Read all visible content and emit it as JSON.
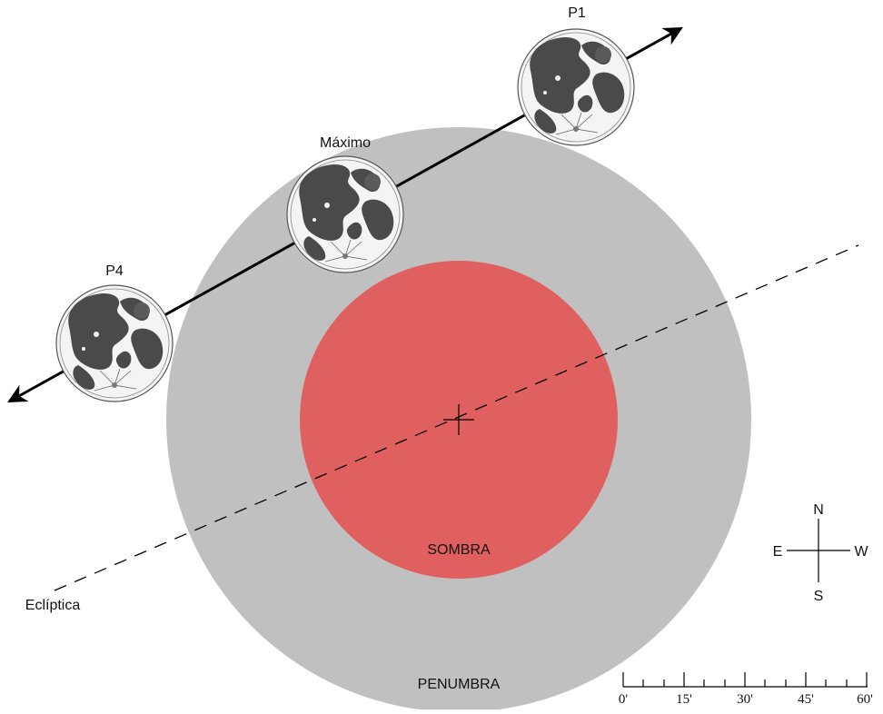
{
  "labels": {
    "penumbra": "PENUMBRA",
    "umbra": "SOMBRA",
    "ecliptic": "Eclíptica",
    "p1": "P1",
    "maximum": "Máximo",
    "p4": "P4"
  },
  "compass": {
    "north": "N",
    "south": "S",
    "east": "E",
    "west": "W"
  },
  "scale": {
    "ticks": [
      "0'",
      "15'",
      "30'",
      "45'",
      "60'"
    ]
  },
  "colors": {
    "penumbra": "#c0c0c0",
    "umbra": "#e06060",
    "moon_fill": "#f4f4f4",
    "moon_dark": "#4a4a4a"
  }
}
